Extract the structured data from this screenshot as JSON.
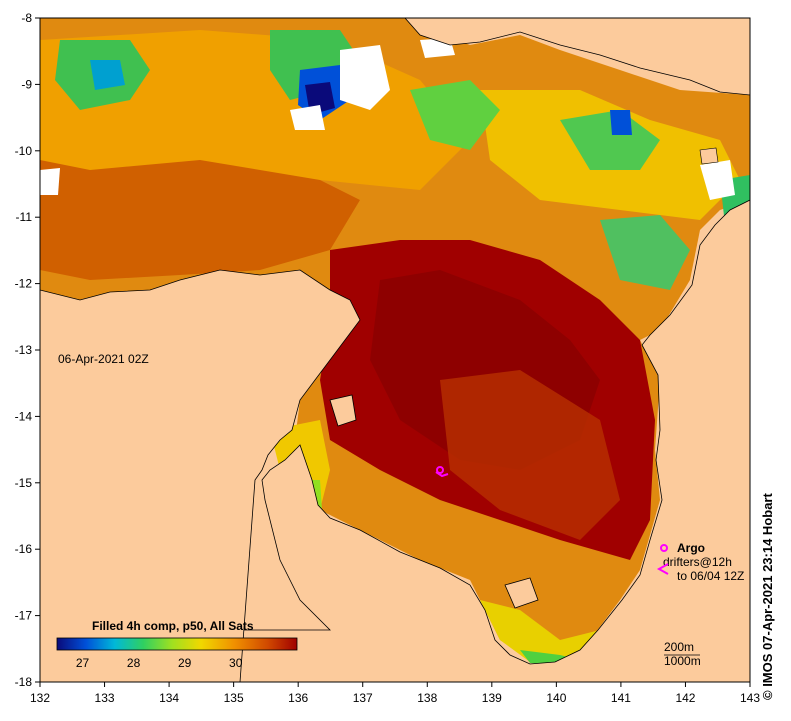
{
  "map": {
    "timestamp": "06-Apr-2021 02Z",
    "credit": "© IMOS 07-Apr-2021 23:14 Hobart",
    "lon_ticks": [
      "132",
      "133",
      "134",
      "135",
      "136",
      "137",
      "138",
      "139",
      "140",
      "141",
      "142",
      "143"
    ],
    "lat_ticks": [
      "-8",
      "-9",
      "-10",
      "-11",
      "-12",
      "-13",
      "-14",
      "-15",
      "-16",
      "-17",
      "-18"
    ],
    "extent": {
      "lon": [
        132,
        143
      ],
      "lat": [
        -18,
        -8
      ]
    },
    "colorbar": {
      "title": "Filled 4h comp, p50, All Sats",
      "ticks": [
        "27",
        "28",
        "29",
        "30"
      ],
      "range": [
        26.5,
        31.2
      ],
      "colors": [
        "#0a0a7a",
        "#0050d8",
        "#00b8d8",
        "#30d060",
        "#a0e020",
        "#f0d800",
        "#f09000",
        "#d04800",
        "#a00000"
      ]
    },
    "legend": {
      "argo_label": "Argo",
      "drifters_label": "drifters@12h",
      "drifters_range": "to 06/04 12Z",
      "argo_color": "#ff00ff",
      "depth_200": "200m",
      "depth_1000": "1000m"
    },
    "colors": {
      "land": "#fccb9c",
      "cloud": "#ffffff",
      "warm": "#a00000",
      "mid": "#d07000",
      "cool": "#40c050"
    }
  }
}
